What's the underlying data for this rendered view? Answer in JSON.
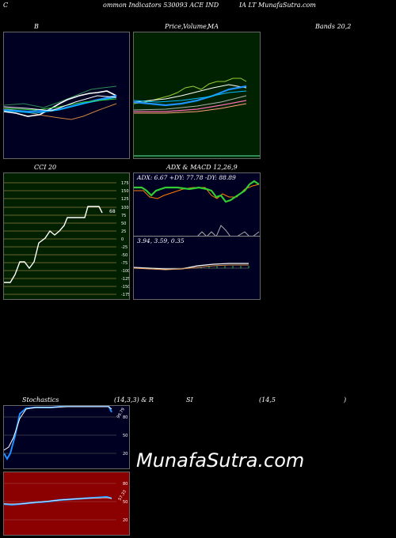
{
  "header": {
    "left": "C",
    "middle": "ommon  Indicators 530093 ACE IND",
    "right": "IA LT MunafaSutra.com"
  },
  "panels": {
    "bollinger": {
      "title": "B"
    },
    "price_ma": {
      "title_a": "Price,",
      "title_b": "Volume,",
      "title_c": "MA"
    },
    "bands": {
      "title": "Bands 20,2"
    },
    "cci": {
      "title": "CCI 20",
      "value": "68",
      "levels": [
        "175",
        "150",
        "125",
        "100",
        "75",
        "50",
        "25",
        "0",
        "-25",
        "-50",
        "-75",
        "-100",
        "-125",
        "-150",
        "-175"
      ]
    },
    "adx": {
      "title": "ADX  & MACD 12,26,9",
      "readout": "ADX: 6.67 +DY: 77.78 -DY: 88.89"
    },
    "macd": {
      "readout": "3.94,  3.59,  0.35"
    },
    "stoch": {
      "title_a": "Stochastics",
      "title_b": "(14,3,3) & R",
      "title_c": "SI",
      "title_d": "(14,5",
      "title_e": ")",
      "value": "99.79",
      "levels": [
        "80",
        "50",
        "20"
      ]
    },
    "rsi": {
      "value": "57.33",
      "levels": [
        "80",
        "50",
        "20"
      ]
    }
  },
  "watermark": "MunafaSutra.com",
  "colors": {
    "bollinger_bg": "#000022",
    "price_bg": "#002200",
    "cci_bg": "#002000",
    "adx_bg": "#000022",
    "rsi_bg": "#8b0000"
  }
}
